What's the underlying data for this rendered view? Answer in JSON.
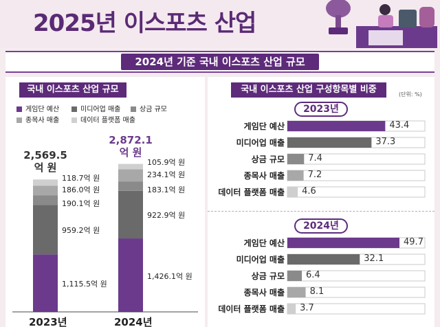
{
  "page_title": "2025년 이스포츠 산업",
  "banner": "2024년 기준 국내 이스포츠 산업 규모",
  "colors": {
    "brand": "#5d2b7a",
    "game_team_budget": "#6b3a8c",
    "media_sales": "#6a6a6a",
    "prize_money": "#8a8a8a",
    "event_sales": "#a8a8a8",
    "data_platform_sales": "#cfcfcf"
  },
  "chart_data": [
    {
      "type": "bar",
      "stacked": true,
      "title": "국내 이스포츠 산업 규모",
      "categories": [
        "2023년",
        "2024년"
      ],
      "totals": [
        "2,569.5\n억 원",
        "2,872.1\n억 원"
      ],
      "series": [
        {
          "name": "게임단 예산",
          "values": [
            1115.5,
            1426.1
          ],
          "labels": [
            "1,115.5억 원",
            "1,426.1억 원"
          ]
        },
        {
          "name": "미디어업 매출",
          "values": [
            959.2,
            922.9
          ],
          "labels": [
            "959.2억 원",
            "922.9억 원"
          ]
        },
        {
          "name": "상금 규모",
          "values": [
            190.1,
            183.1
          ],
          "labels": [
            "190.1억 원",
            "183.1억 원"
          ]
        },
        {
          "name": "종목사 매출",
          "values": [
            186.0,
            234.1
          ],
          "labels": [
            "186.0억 원",
            "234.1억 원"
          ]
        },
        {
          "name": "데이터 플랫폼 매출",
          "values": [
            118.7,
            105.9
          ],
          "labels": [
            "118.7억 원",
            "105.9억 원"
          ]
        }
      ]
    },
    {
      "type": "bar",
      "orientation": "horizontal",
      "title": "국내 이스포츠 산업 구성항목별 비중",
      "unit": "(단위: %)",
      "xlim": [
        0,
        50
      ],
      "groups": [
        {
          "label": "2023년",
          "categories": [
            "게임단 예산",
            "미디어업 매출",
            "상금 규모",
            "종목사 매출",
            "데이터 플랫폼 매출"
          ],
          "values": [
            43.4,
            37.3,
            7.4,
            7.2,
            4.6
          ]
        },
        {
          "label": "2024년",
          "categories": [
            "게임단 예산",
            "미디어업 매출",
            "상금 규모",
            "종목사 매출",
            "데이터 플랫폼 매출"
          ],
          "values": [
            49.7,
            32.1,
            6.4,
            8.1,
            3.7
          ]
        }
      ]
    }
  ]
}
